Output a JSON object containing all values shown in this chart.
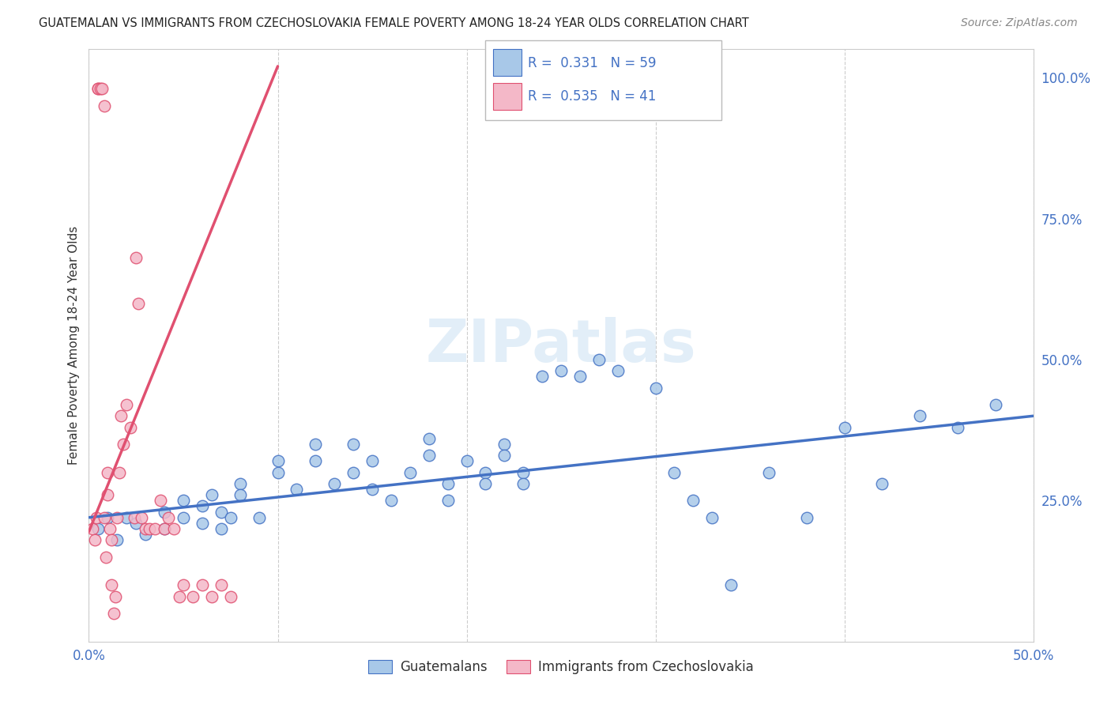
{
  "title": "GUATEMALAN VS IMMIGRANTS FROM CZECHOSLOVAKIA FEMALE POVERTY AMONG 18-24 YEAR OLDS CORRELATION CHART",
  "source": "Source: ZipAtlas.com",
  "ylabel": "Female Poverty Among 18-24 Year Olds",
  "xlim": [
    0.0,
    0.5
  ],
  "ylim": [
    0.0,
    1.05
  ],
  "legend1_R": "0.331",
  "legend1_N": "59",
  "legend2_R": "0.535",
  "legend2_N": "41",
  "color_blue": "#a8c8e8",
  "color_pink": "#f4b8c8",
  "line_blue": "#4472c4",
  "line_pink": "#e05070",
  "watermark": "ZIPatlas",
  "blue_scatter_x": [
    0.005,
    0.01,
    0.015,
    0.02,
    0.025,
    0.03,
    0.04,
    0.04,
    0.05,
    0.05,
    0.06,
    0.06,
    0.065,
    0.07,
    0.07,
    0.075,
    0.08,
    0.08,
    0.09,
    0.1,
    0.1,
    0.11,
    0.12,
    0.12,
    0.13,
    0.14,
    0.14,
    0.15,
    0.15,
    0.16,
    0.17,
    0.18,
    0.18,
    0.19,
    0.19,
    0.2,
    0.21,
    0.21,
    0.22,
    0.22,
    0.23,
    0.23,
    0.24,
    0.25,
    0.26,
    0.27,
    0.28,
    0.3,
    0.31,
    0.32,
    0.33,
    0.34,
    0.36,
    0.38,
    0.4,
    0.42,
    0.44,
    0.46,
    0.48
  ],
  "blue_scatter_y": [
    0.2,
    0.22,
    0.18,
    0.22,
    0.21,
    0.19,
    0.23,
    0.2,
    0.25,
    0.22,
    0.21,
    0.24,
    0.26,
    0.23,
    0.2,
    0.22,
    0.28,
    0.26,
    0.22,
    0.32,
    0.3,
    0.27,
    0.35,
    0.32,
    0.28,
    0.35,
    0.3,
    0.27,
    0.32,
    0.25,
    0.3,
    0.36,
    0.33,
    0.28,
    0.25,
    0.32,
    0.3,
    0.28,
    0.35,
    0.33,
    0.3,
    0.28,
    0.47,
    0.48,
    0.47,
    0.5,
    0.48,
    0.45,
    0.3,
    0.25,
    0.22,
    0.1,
    0.3,
    0.22,
    0.38,
    0.28,
    0.4,
    0.38,
    0.42
  ],
  "pink_scatter_x": [
    0.002,
    0.003,
    0.004,
    0.005,
    0.005,
    0.006,
    0.007,
    0.008,
    0.008,
    0.009,
    0.01,
    0.01,
    0.011,
    0.012,
    0.012,
    0.013,
    0.014,
    0.015,
    0.016,
    0.017,
    0.018,
    0.02,
    0.022,
    0.024,
    0.025,
    0.026,
    0.028,
    0.03,
    0.032,
    0.035,
    0.038,
    0.04,
    0.042,
    0.045,
    0.048,
    0.05,
    0.055,
    0.06,
    0.065,
    0.07,
    0.075
  ],
  "pink_scatter_y": [
    0.2,
    0.18,
    0.22,
    0.98,
    0.98,
    0.98,
    0.98,
    0.95,
    0.22,
    0.15,
    0.3,
    0.26,
    0.2,
    0.18,
    0.1,
    0.05,
    0.08,
    0.22,
    0.3,
    0.4,
    0.35,
    0.42,
    0.38,
    0.22,
    0.68,
    0.6,
    0.22,
    0.2,
    0.2,
    0.2,
    0.25,
    0.2,
    0.22,
    0.2,
    0.08,
    0.1,
    0.08,
    0.1,
    0.08,
    0.1,
    0.08
  ],
  "blue_line_x": [
    0.0,
    0.5
  ],
  "blue_line_y": [
    0.22,
    0.4
  ],
  "pink_line_x": [
    0.0,
    0.1
  ],
  "pink_line_y": [
    0.195,
    1.02
  ]
}
